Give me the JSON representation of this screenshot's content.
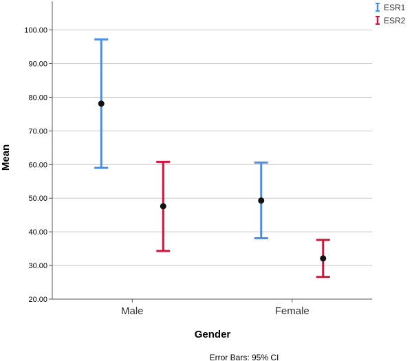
{
  "chart_data": {
    "type": "error-bar",
    "xlabel": "Gender",
    "ylabel": "Mean",
    "footnote": "Error Bars: 95% CI",
    "categories": [
      "Male",
      "Female"
    ],
    "ylim": [
      20,
      108.5
    ],
    "yticks": [
      20,
      30,
      40,
      50,
      60,
      70,
      80,
      90,
      100
    ],
    "ytick_labels": [
      "20.00",
      "30.00",
      "40.00",
      "50.00",
      "60.00",
      "70.00",
      "80.00",
      "90.00",
      "100.00"
    ],
    "grid": true,
    "legend_position": "top-right",
    "series": [
      {
        "name": "ESR1",
        "color": "#4a90e2",
        "mean": [
          78.1,
          49.3
        ],
        "lower": [
          59.0,
          38.1
        ],
        "upper": [
          97.2,
          60.6
        ]
      },
      {
        "name": "ESR2",
        "color": "#d0143c",
        "mean": [
          47.6,
          32.1
        ],
        "lower": [
          34.3,
          26.6
        ],
        "upper": [
          60.8,
          37.6
        ]
      }
    ]
  }
}
